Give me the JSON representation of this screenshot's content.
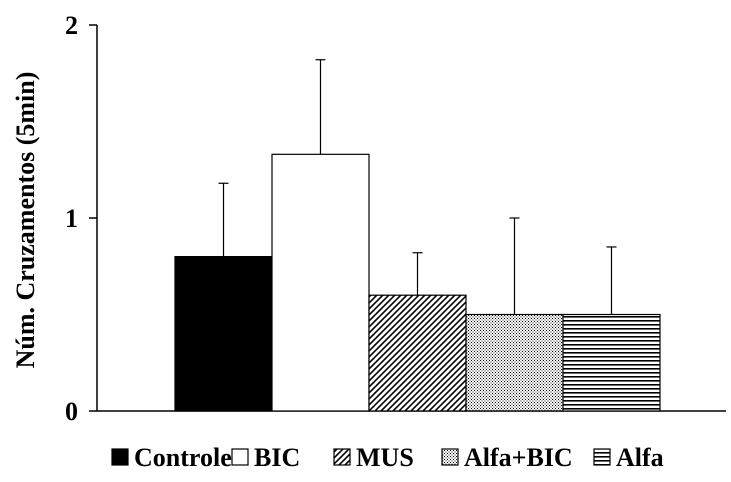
{
  "chart_data": {
    "type": "bar",
    "title": "",
    "ylabel": "Núm. Cruzamentos (5min)",
    "xlabel": "",
    "ylim": [
      0,
      2
    ],
    "yticks": [
      "0",
      "1",
      "2"
    ],
    "grid": false,
    "legend_position": "bottom",
    "series": [
      {
        "name": "Controle",
        "value": 0.8,
        "error": 0.38,
        "pattern": "solid-black"
      },
      {
        "name": "BIC",
        "value": 1.33,
        "error": 0.49,
        "pattern": "white"
      },
      {
        "name": "MUS",
        "value": 0.6,
        "error": 0.22,
        "pattern": "diagonal-hatch"
      },
      {
        "name": "Alfa+BIC",
        "value": 0.5,
        "error": 0.5,
        "pattern": "dotted"
      },
      {
        "name": "Alfa",
        "value": 0.5,
        "error": 0.35,
        "pattern": "horizontal-lines"
      }
    ]
  }
}
